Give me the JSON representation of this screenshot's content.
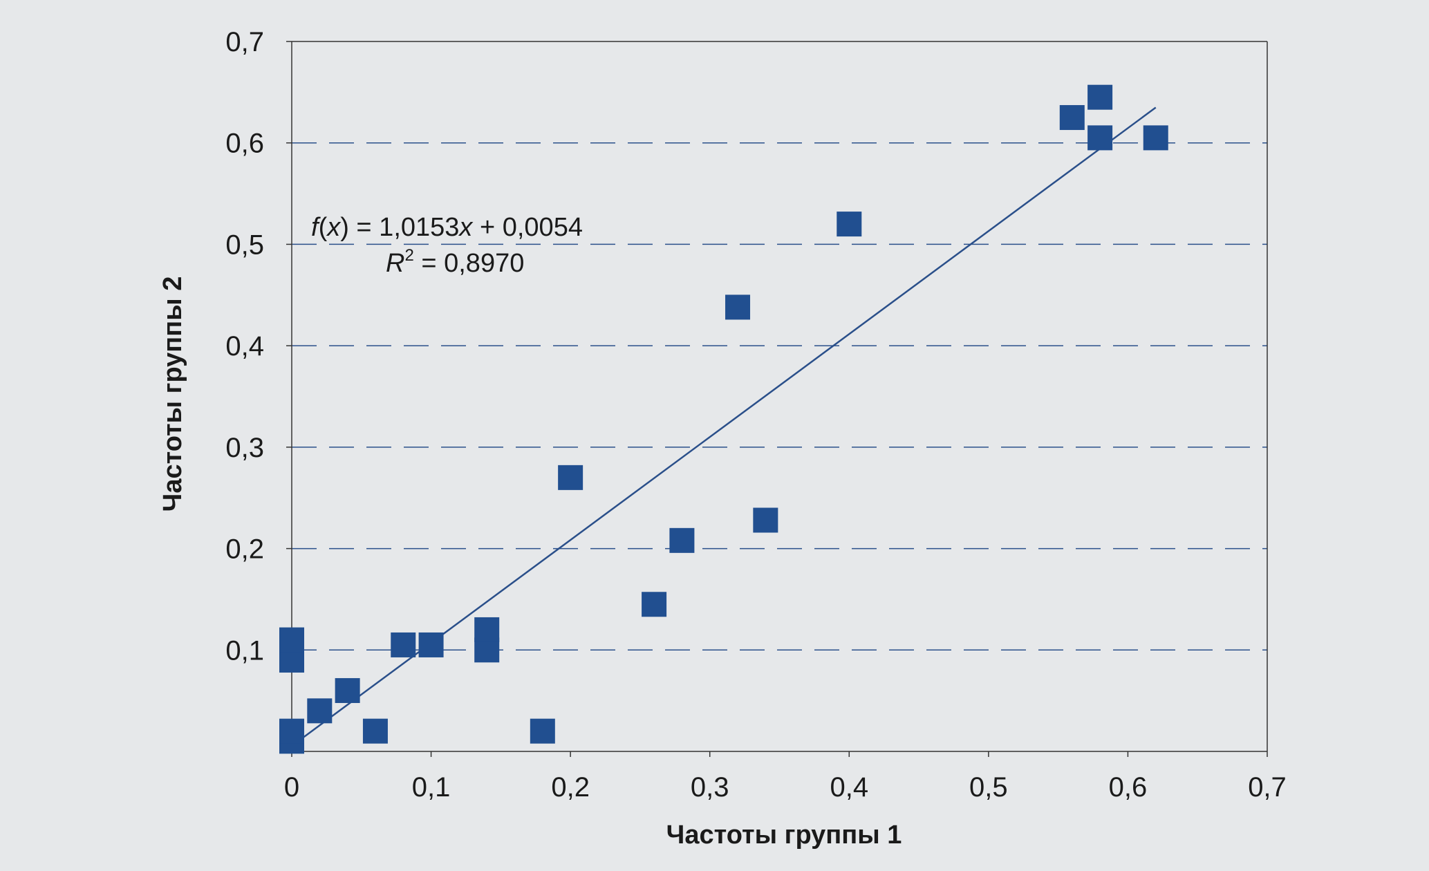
{
  "chart_data": {
    "type": "scatter",
    "xlabel": "Частоты группы 1",
    "ylabel": "Частоты группы 2",
    "xlim": [
      0,
      0.7
    ],
    "ylim": [
      0,
      0.7
    ],
    "x_ticks": [
      "0",
      "0,1",
      "0,2",
      "0,3",
      "0,4",
      "0,5",
      "0,6",
      "0,7"
    ],
    "y_ticks": [
      "0,1",
      "0,2",
      "0,3",
      "0,4",
      "0,5",
      "0,6",
      "0,7"
    ],
    "grid": "horizontal dashed",
    "points": [
      {
        "x": 0.0,
        "y": 0.01
      },
      {
        "x": 0.0,
        "y": 0.02
      },
      {
        "x": 0.0,
        "y": 0.09
      },
      {
        "x": 0.0,
        "y": 0.11
      },
      {
        "x": 0.02,
        "y": 0.04
      },
      {
        "x": 0.04,
        "y": 0.06
      },
      {
        "x": 0.06,
        "y": 0.02
      },
      {
        "x": 0.08,
        "y": 0.105
      },
      {
        "x": 0.1,
        "y": 0.105
      },
      {
        "x": 0.14,
        "y": 0.1
      },
      {
        "x": 0.14,
        "y": 0.12
      },
      {
        "x": 0.18,
        "y": 0.02
      },
      {
        "x": 0.2,
        "y": 0.27
      },
      {
        "x": 0.26,
        "y": 0.145
      },
      {
        "x": 0.28,
        "y": 0.208
      },
      {
        "x": 0.32,
        "y": 0.438
      },
      {
        "x": 0.34,
        "y": 0.228
      },
      {
        "x": 0.4,
        "y": 0.52
      },
      {
        "x": 0.56,
        "y": 0.625
      },
      {
        "x": 0.58,
        "y": 0.645
      },
      {
        "x": 0.58,
        "y": 0.605
      },
      {
        "x": 0.62,
        "y": 0.605
      }
    ],
    "trendline": {
      "slope": 1.0153,
      "intercept": 0.0054,
      "x_range": [
        0,
        0.62
      ]
    },
    "equation_lines": {
      "fx": {
        "f": "f",
        "open": "(",
        "x": "x",
        "close": ")",
        "rest": " = 1,0153",
        "x2": "x",
        "tail": " + 0,0054"
      },
      "r2": {
        "r": "R",
        "sup": "2",
        "rest": " = 0,8970"
      }
    },
    "colors": {
      "marker": "#214f90",
      "trendline": "#2a4f8a",
      "grid": "#2a4f8a",
      "axis": "#333333",
      "background": "#e6e8ea"
    }
  }
}
